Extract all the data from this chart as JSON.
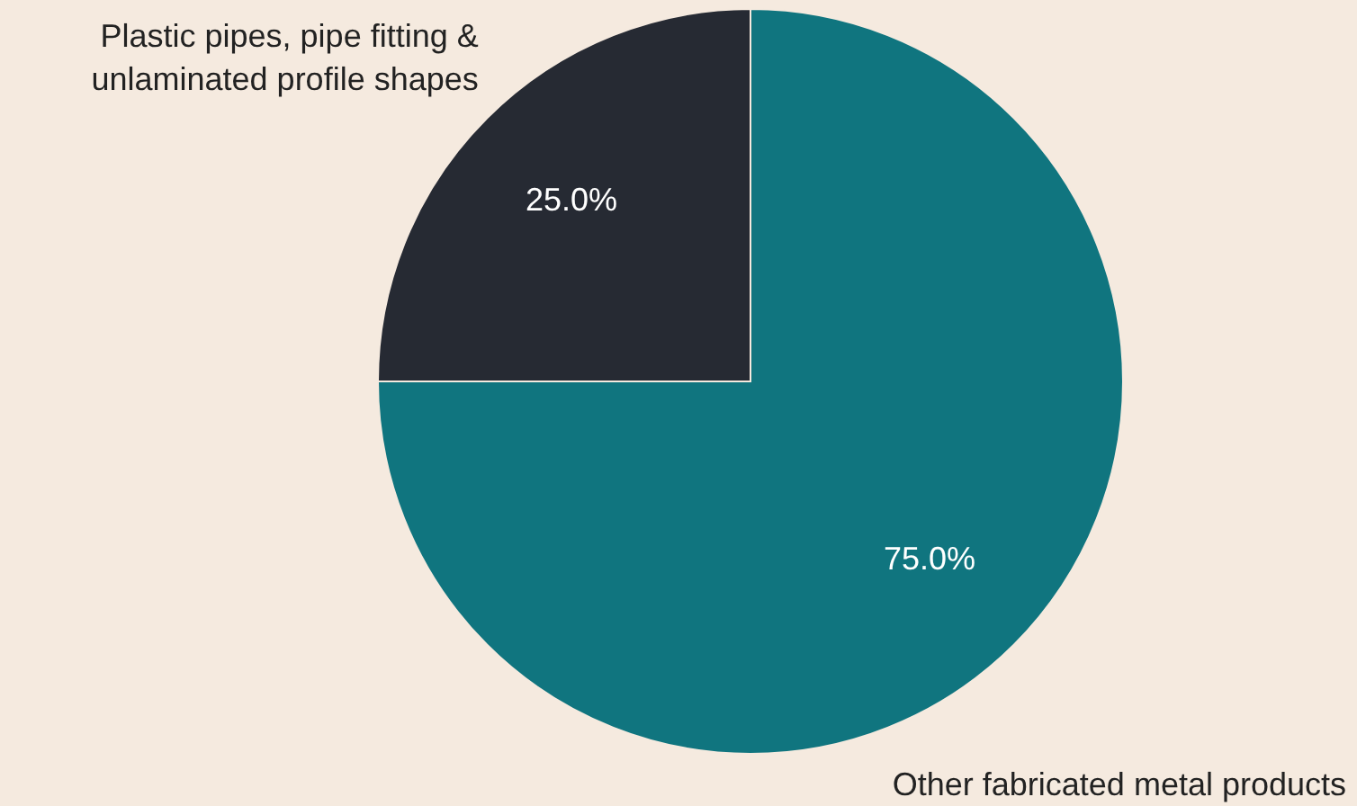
{
  "chart_data": {
    "type": "pie",
    "categories": [
      "Other fabricated metal products",
      "Plastic pipes, pipe fitting & unlaminated profile shapes"
    ],
    "values": [
      75,
      25
    ],
    "colors": [
      "#10757f",
      "#262a33"
    ],
    "value_labels": [
      "75.0%",
      "25.0%"
    ]
  }
}
